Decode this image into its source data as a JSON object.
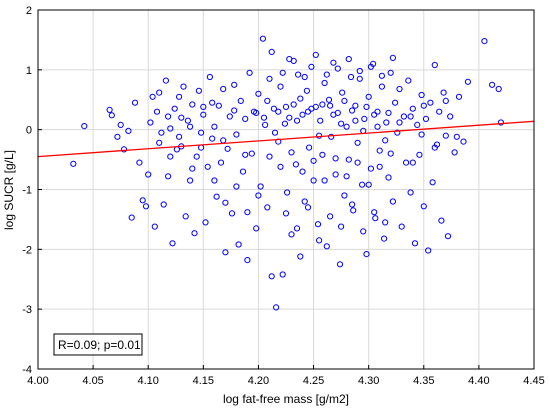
{
  "chart_data": {
    "type": "scatter",
    "xlabel": "log fat-free mass [g/m2]",
    "ylabel": "log SUCR [g/L]",
    "xlim": [
      4.0,
      4.45
    ],
    "ylim": [
      -4,
      2
    ],
    "x_ticks": [
      "4.00",
      "4.05",
      "4.10",
      "4.15",
      "4.20",
      "4.25",
      "4.30",
      "4.35",
      "4.40",
      "4.45"
    ],
    "y_ticks": [
      "-4",
      "-3",
      "-2",
      "-1",
      "0",
      "1",
      "2"
    ],
    "grid": true,
    "marker_color": "#0000ff",
    "fit_line_color": "#ff0000",
    "annotation": "R=0.09; p=0.01",
    "fit_line": {
      "x": [
        4.0,
        4.45
      ],
      "y": [
        -0.45,
        0.14
      ]
    },
    "points": [
      [
        4.032,
        -0.57
      ],
      [
        4.042,
        0.06
      ],
      [
        4.065,
        0.33
      ],
      [
        4.067,
        0.24
      ],
      [
        4.072,
        -0.12
      ],
      [
        4.075,
        0.08
      ],
      [
        4.078,
        -0.33
      ],
      [
        4.082,
        -0.02
      ],
      [
        4.085,
        -1.47
      ],
      [
        4.088,
        0.45
      ],
      [
        4.092,
        -0.55
      ],
      [
        4.095,
        -1.18
      ],
      [
        4.098,
        -1.28
      ],
      [
        4.1,
        -0.75
      ],
      [
        4.102,
        0.12
      ],
      [
        4.104,
        0.55
      ],
      [
        4.106,
        -1.62
      ],
      [
        4.108,
        0.3
      ],
      [
        4.11,
        -0.22
      ],
      [
        4.112,
        -0.05
      ],
      [
        4.114,
        -1.25
      ],
      [
        4.116,
        0.82
      ],
      [
        4.118,
        -0.78
      ],
      [
        4.12,
        0.02
      ],
      [
        4.122,
        -1.9
      ],
      [
        4.124,
        0.35
      ],
      [
        4.126,
        -0.33
      ],
      [
        4.128,
        0.55
      ],
      [
        4.13,
        -0.28
      ],
      [
        4.132,
        0.72
      ],
      [
        4.134,
        -1.45
      ],
      [
        4.136,
        0.15
      ],
      [
        4.138,
        -0.85
      ],
      [
        4.14,
        0.42
      ],
      [
        4.142,
        -1.73
      ],
      [
        4.144,
        -0.45
      ],
      [
        4.146,
        0.65
      ],
      [
        4.148,
        -0.05
      ],
      [
        4.15,
        0.25
      ],
      [
        4.152,
        -1.55
      ],
      [
        4.154,
        -0.62
      ],
      [
        4.156,
        0.88
      ],
      [
        4.158,
        -0.15
      ],
      [
        4.16,
        0.05
      ],
      [
        4.162,
        -1.12
      ],
      [
        4.164,
        0.4
      ],
      [
        4.166,
        -0.55
      ],
      [
        4.168,
        0.68
      ],
      [
        4.17,
        -2.05
      ],
      [
        4.172,
        -0.32
      ],
      [
        4.174,
        0.22
      ],
      [
        4.176,
        -1.4
      ],
      [
        4.178,
        0.75
      ],
      [
        4.18,
        -0.08
      ],
      [
        4.182,
        -1.92
      ],
      [
        4.184,
        0.48
      ],
      [
        4.186,
        -0.7
      ],
      [
        4.188,
        0.18
      ],
      [
        4.19,
        -2.18
      ],
      [
        4.192,
        0.95
      ],
      [
        4.194,
        -0.4
      ],
      [
        4.196,
        0.3
      ],
      [
        4.198,
        -1.65
      ],
      [
        4.2,
        0.6
      ],
      [
        4.202,
        -0.95
      ],
      [
        4.204,
        1.52
      ],
      [
        4.206,
        0.08
      ],
      [
        4.208,
        -1.3
      ],
      [
        4.21,
        0.85
      ],
      [
        4.212,
        -2.45
      ],
      [
        4.214,
        0.35
      ],
      [
        4.216,
        -2.97
      ],
      [
        4.218,
        -0.2
      ],
      [
        4.22,
        0.72
      ],
      [
        4.222,
        -2.42
      ],
      [
        4.224,
        0.1
      ],
      [
        4.226,
        -1.05
      ],
      [
        4.228,
        1.18
      ],
      [
        4.23,
        -1.75
      ],
      [
        4.232,
        0.42
      ],
      [
        4.234,
        -0.58
      ],
      [
        4.236,
        0.92
      ],
      [
        4.238,
        -2.12
      ],
      [
        4.24,
        0.25
      ],
      [
        4.242,
        -1.2
      ],
      [
        4.244,
        0.65
      ],
      [
        4.246,
        -0.3
      ],
      [
        4.248,
        1.05
      ],
      [
        4.25,
        -0.85
      ],
      [
        4.252,
        0.38
      ],
      [
        4.254,
        -1.58
      ],
      [
        4.256,
        0.15
      ],
      [
        4.258,
        -0.42
      ],
      [
        4.26,
        0.78
      ],
      [
        4.262,
        -1.95
      ],
      [
        4.264,
        0.5
      ],
      [
        4.266,
        -0.12
      ],
      [
        4.268,
        1.12
      ],
      [
        4.27,
        -0.75
      ],
      [
        4.272,
        0.28
      ],
      [
        4.274,
        -2.25
      ],
      [
        4.276,
        0.62
      ],
      [
        4.278,
        -1.1
      ],
      [
        4.28,
        0.05
      ],
      [
        4.282,
        -0.5
      ],
      [
        4.284,
        0.88
      ],
      [
        4.286,
        -1.35
      ],
      [
        4.288,
        0.4
      ],
      [
        4.29,
        -0.22
      ],
      [
        4.292,
        0.98
      ],
      [
        4.294,
        -0.92
      ],
      [
        4.296,
        0.18
      ],
      [
        4.298,
        -2.08
      ],
      [
        4.3,
        0.55
      ],
      [
        4.302,
        -0.65
      ],
      [
        4.304,
        1.1
      ],
      [
        4.306,
        -1.48
      ],
      [
        4.308,
        0.3
      ],
      [
        4.31,
        -0.35
      ],
      [
        4.312,
        0.72
      ],
      [
        4.314,
        -1.82
      ],
      [
        4.316,
        0.12
      ],
      [
        4.318,
        -0.8
      ],
      [
        4.32,
        0.95
      ],
      [
        4.322,
        -1.2
      ],
      [
        4.324,
        0.45
      ],
      [
        4.326,
        -0.05
      ],
      [
        4.328,
        0.68
      ],
      [
        4.33,
        -1.62
      ],
      [
        4.332,
        0.22
      ],
      [
        4.334,
        -0.55
      ],
      [
        4.336,
        0.82
      ],
      [
        4.338,
        -1.05
      ],
      [
        4.34,
        0.35
      ],
      [
        4.342,
        -1.9
      ],
      [
        4.344,
        0.08
      ],
      [
        4.346,
        -0.42
      ],
      [
        4.348,
        0.58
      ],
      [
        4.35,
        -1.28
      ],
      [
        4.352,
        0.18
      ],
      [
        4.354,
        -2.02
      ],
      [
        4.356,
        0.45
      ],
      [
        4.358,
        -0.88
      ],
      [
        4.36,
        1.08
      ],
      [
        4.362,
        -0.25
      ],
      [
        4.364,
        0.3
      ],
      [
        4.366,
        -1.52
      ],
      [
        4.368,
        0.62
      ],
      [
        4.37,
        -0.1
      ],
      [
        4.372,
        -1.78
      ],
      [
        4.374,
        0.22
      ],
      [
        4.378,
        -0.38
      ],
      [
        4.382,
        0.55
      ],
      [
        4.386,
        -0.2
      ],
      [
        4.39,
        0.8
      ],
      [
        4.405,
        1.48
      ],
      [
        4.412,
        0.75
      ],
      [
        4.418,
        0.68
      ],
      [
        4.42,
        0.12
      ],
      [
        4.118,
        0.22
      ],
      [
        4.128,
        -0.12
      ],
      [
        4.138,
        0.05
      ],
      [
        4.148,
        -0.3
      ],
      [
        4.158,
        0.45
      ],
      [
        4.168,
        -0.18
      ],
      [
        4.178,
        0.32
      ],
      [
        4.188,
        -0.42
      ],
      [
        4.198,
        0.28
      ],
      [
        4.208,
        0.48
      ],
      [
        4.218,
        0.3
      ],
      [
        4.228,
        0.2
      ],
      [
        4.238,
        0.52
      ],
      [
        4.248,
        0.35
      ],
      [
        4.258,
        0.42
      ],
      [
        4.268,
        0.25
      ],
      [
        4.278,
        0.48
      ],
      [
        4.288,
        0.15
      ],
      [
        4.298,
        0.38
      ],
      [
        4.308,
        0.05
      ],
      [
        4.318,
        0.28
      ],
      [
        4.328,
        0.12
      ],
      [
        4.338,
        0.22
      ],
      [
        4.348,
        -0.08
      ],
      [
        4.205,
        0.2
      ],
      [
        4.215,
        -0.05
      ],
      [
        4.225,
        0.38
      ],
      [
        4.235,
        0.15
      ],
      [
        4.245,
        0.3
      ],
      [
        4.255,
        -0.1
      ],
      [
        4.265,
        0.4
      ],
      [
        4.275,
        0.1
      ],
      [
        4.285,
        0.32
      ],
      [
        4.295,
        -0.02
      ],
      [
        4.305,
        0.25
      ],
      [
        4.315,
        -0.18
      ],
      [
        4.21,
        -0.45
      ],
      [
        4.22,
        -0.62
      ],
      [
        4.23,
        -0.38
      ],
      [
        4.24,
        -0.7
      ],
      [
        4.25,
        -0.52
      ],
      [
        4.26,
        -0.85
      ],
      [
        4.27,
        -0.48
      ],
      [
        4.28,
        -0.78
      ],
      [
        4.29,
        -0.55
      ],
      [
        4.3,
        -0.92
      ],
      [
        4.31,
        -0.62
      ],
      [
        4.32,
        -0.4
      ],
      [
        4.212,
        1.3
      ],
      [
        4.222,
        0.95
      ],
      [
        4.232,
        1.15
      ],
      [
        4.242,
        0.88
      ],
      [
        4.252,
        1.25
      ],
      [
        4.262,
        0.92
      ],
      [
        4.272,
        1.02
      ],
      [
        4.282,
        1.18
      ],
      [
        4.292,
        0.85
      ],
      [
        4.302,
        1.05
      ],
      [
        4.312,
        0.9
      ],
      [
        4.322,
        1.2
      ],
      [
        4.225,
        -1.4
      ],
      [
        4.235,
        -1.65
      ],
      [
        4.245,
        -1.3
      ],
      [
        4.255,
        -1.85
      ],
      [
        4.265,
        -1.45
      ],
      [
        4.275,
        -1.62
      ],
      [
        4.285,
        -1.25
      ],
      [
        4.295,
        -1.7
      ],
      [
        4.305,
        -1.38
      ],
      [
        4.315,
        -1.55
      ],
      [
        4.16,
        -0.85
      ],
      [
        4.17,
        -1.22
      ],
      [
        4.18,
        -0.95
      ],
      [
        4.19,
        -1.38
      ],
      [
        4.2,
        -1.1
      ],
      [
        4.15,
        0.38
      ],
      [
        4.14,
        -0.65
      ],
      [
        4.13,
        0.2
      ],
      [
        4.12,
        -0.45
      ],
      [
        4.11,
        0.62
      ],
      [
        4.34,
        -0.55
      ],
      [
        4.35,
        0.4
      ],
      [
        4.36,
        -0.3
      ],
      [
        4.37,
        0.48
      ],
      [
        4.38,
        -0.12
      ]
    ]
  }
}
